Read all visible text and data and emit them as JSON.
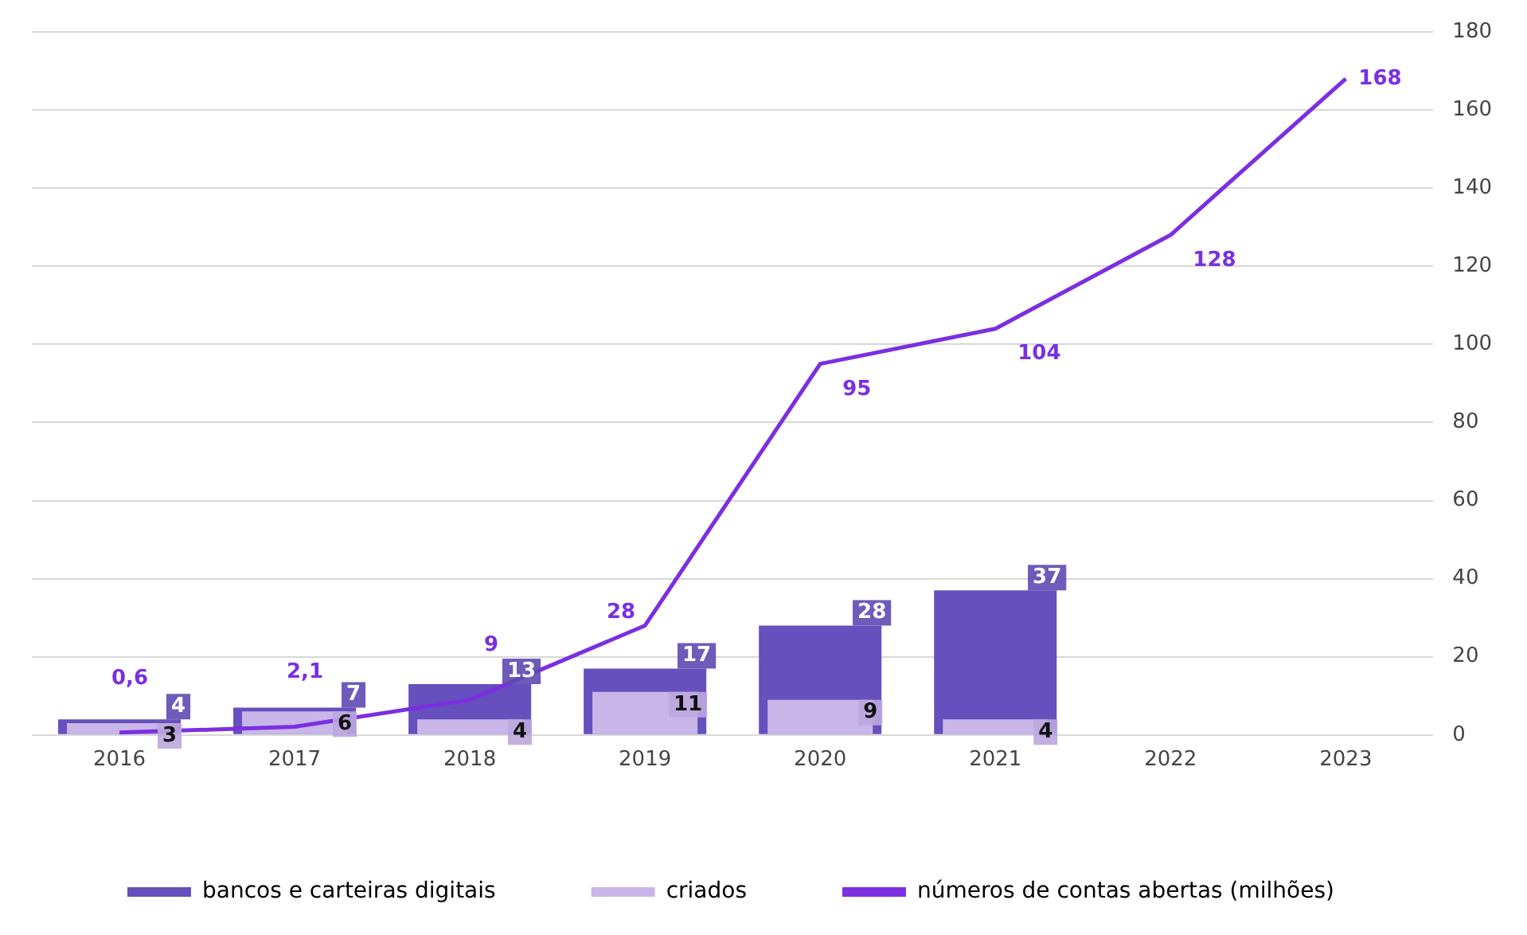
{
  "chart_data": {
    "type": "bar",
    "categories": [
      "2016",
      "2017",
      "2018",
      "2019",
      "2020",
      "2021",
      "2022",
      "2023"
    ],
    "series": [
      {
        "name": "bancos e carteiras digitais",
        "color": "#6650bd",
        "values": [
          4,
          7,
          13,
          17,
          28,
          37,
          null,
          null
        ],
        "value_labels": [
          "4",
          "7",
          "13",
          "17",
          "28",
          "37",
          null,
          null
        ]
      },
      {
        "name": "criados",
        "color": "#c9b6e8",
        "values": [
          3,
          6,
          4,
          11,
          9,
          4,
          null,
          null
        ],
        "value_labels": [
          "3",
          "6",
          "4",
          "11",
          "9",
          "4",
          null,
          null
        ]
      },
      {
        "name": "números de contas abertas (milhões)",
        "type": "line",
        "color": "#7b2fe0",
        "values": [
          0.6,
          2.1,
          9,
          28,
          95,
          104,
          128,
          168
        ],
        "value_labels": [
          "0,6",
          "2,1",
          "9",
          "28",
          "95",
          "104",
          "128",
          "168"
        ]
      }
    ],
    "ylim": [
      0,
      180
    ],
    "yticks": [
      0,
      20,
      40,
      60,
      80,
      100,
      120,
      140,
      160,
      180
    ],
    "grid": "y",
    "legend": "bottom",
    "marker": "none"
  }
}
